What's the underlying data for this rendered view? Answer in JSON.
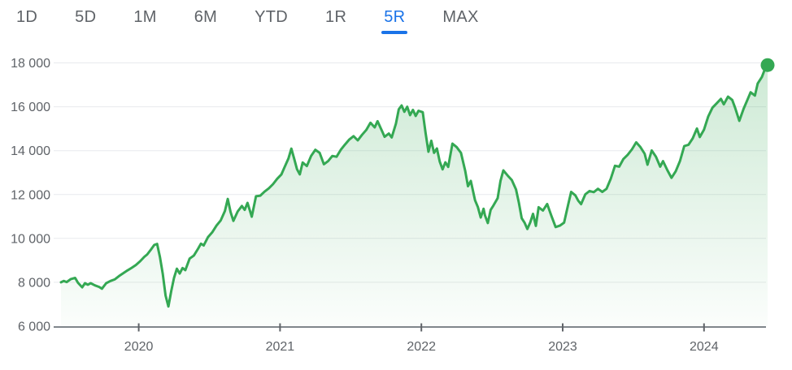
{
  "tabs": {
    "items": [
      {
        "label": "1D",
        "active": false
      },
      {
        "label": "5D",
        "active": false
      },
      {
        "label": "1M",
        "active": false
      },
      {
        "label": "6M",
        "active": false
      },
      {
        "label": "YTD",
        "active": false
      },
      {
        "label": "1R",
        "active": false
      },
      {
        "label": "5R",
        "active": true
      },
      {
        "label": "MAX",
        "active": false
      }
    ],
    "active_color": "#1a73e8",
    "inactive_color": "#5f6368"
  },
  "chart_data": {
    "type": "area",
    "title": "",
    "xlabel": "",
    "ylabel": "",
    "grid": "horizontal",
    "legend": "none",
    "xlim": [
      2019.45,
      2024.45
    ],
    "ylim": [
      6000,
      18000
    ],
    "yticks": [
      6000,
      8000,
      10000,
      12000,
      14000,
      16000,
      18000
    ],
    "ytick_labels": [
      "6 000",
      "8 000",
      "10 000",
      "12 000",
      "14 000",
      "16 000",
      "18 000"
    ],
    "xticks": [
      2020,
      2021,
      2022,
      2023,
      2024
    ],
    "xtick_labels": [
      "2020",
      "2021",
      "2022",
      "2023",
      "2024"
    ],
    "endpoint": {
      "x": 2024.45,
      "value": 17900,
      "marker": "dot"
    },
    "colors": {
      "line": "#34a853",
      "marker": "#34a853",
      "fill_top": "rgba(52,168,83,0.25)",
      "fill_bottom": "rgba(52,168,83,0.02)",
      "grid": "#e8eaed",
      "axis": "#80868b",
      "tick": "#5f6368",
      "label": "#5f6368"
    },
    "points": [
      [
        2019.45,
        8000
      ],
      [
        2019.47,
        8060
      ],
      [
        2019.49,
        8010
      ],
      [
        2019.52,
        8150
      ],
      [
        2019.55,
        8200
      ],
      [
        2019.57,
        7980
      ],
      [
        2019.6,
        7770
      ],
      [
        2019.62,
        7960
      ],
      [
        2019.64,
        7890
      ],
      [
        2019.66,
        7960
      ],
      [
        2019.69,
        7860
      ],
      [
        2019.72,
        7790
      ],
      [
        2019.74,
        7710
      ],
      [
        2019.77,
        7960
      ],
      [
        2019.8,
        8060
      ],
      [
        2019.83,
        8130
      ],
      [
        2019.86,
        8280
      ],
      [
        2019.89,
        8410
      ],
      [
        2019.92,
        8540
      ],
      [
        2019.95,
        8660
      ],
      [
        2019.98,
        8790
      ],
      [
        2020.01,
        8960
      ],
      [
        2020.04,
        9160
      ],
      [
        2020.06,
        9270
      ],
      [
        2020.09,
        9520
      ],
      [
        2020.11,
        9700
      ],
      [
        2020.13,
        9750
      ],
      [
        2020.15,
        9150
      ],
      [
        2020.17,
        8400
      ],
      [
        2020.19,
        7400
      ],
      [
        2020.21,
        6900
      ],
      [
        2020.23,
        7600
      ],
      [
        2020.25,
        8200
      ],
      [
        2020.27,
        8620
      ],
      [
        2020.29,
        8400
      ],
      [
        2020.31,
        8650
      ],
      [
        2020.33,
        8550
      ],
      [
        2020.36,
        9080
      ],
      [
        2020.39,
        9220
      ],
      [
        2020.42,
        9530
      ],
      [
        2020.44,
        9760
      ],
      [
        2020.46,
        9680
      ],
      [
        2020.49,
        10060
      ],
      [
        2020.52,
        10280
      ],
      [
        2020.55,
        10580
      ],
      [
        2020.58,
        10820
      ],
      [
        2020.61,
        11250
      ],
      [
        2020.63,
        11800
      ],
      [
        2020.65,
        11200
      ],
      [
        2020.67,
        10800
      ],
      [
        2020.7,
        11230
      ],
      [
        2020.73,
        11480
      ],
      [
        2020.75,
        11300
      ],
      [
        2020.77,
        11620
      ],
      [
        2020.8,
        10990
      ],
      [
        2020.83,
        11920
      ],
      [
        2020.86,
        11950
      ],
      [
        2020.89,
        12130
      ],
      [
        2020.92,
        12280
      ],
      [
        2020.95,
        12470
      ],
      [
        2020.98,
        12720
      ],
      [
        2021.01,
        12920
      ],
      [
        2021.03,
        13220
      ],
      [
        2021.06,
        13650
      ],
      [
        2021.08,
        14090
      ],
      [
        2021.1,
        13630
      ],
      [
        2021.12,
        13160
      ],
      [
        2021.14,
        12920
      ],
      [
        2021.16,
        13460
      ],
      [
        2021.19,
        13300
      ],
      [
        2021.22,
        13760
      ],
      [
        2021.25,
        14040
      ],
      [
        2021.28,
        13900
      ],
      [
        2021.31,
        13380
      ],
      [
        2021.34,
        13520
      ],
      [
        2021.37,
        13760
      ],
      [
        2021.4,
        13720
      ],
      [
        2021.43,
        14040
      ],
      [
        2021.46,
        14280
      ],
      [
        2021.49,
        14510
      ],
      [
        2021.52,
        14660
      ],
      [
        2021.55,
        14470
      ],
      [
        2021.58,
        14720
      ],
      [
        2021.61,
        14940
      ],
      [
        2021.64,
        15270
      ],
      [
        2021.67,
        15060
      ],
      [
        2021.69,
        15340
      ],
      [
        2021.72,
        14920
      ],
      [
        2021.74,
        14630
      ],
      [
        2021.77,
        14780
      ],
      [
        2021.79,
        14600
      ],
      [
        2021.82,
        15230
      ],
      [
        2021.84,
        15880
      ],
      [
        2021.86,
        16060
      ],
      [
        2021.88,
        15770
      ],
      [
        2021.9,
        16000
      ],
      [
        2021.92,
        15620
      ],
      [
        2021.94,
        15860
      ],
      [
        2021.96,
        15580
      ],
      [
        2021.98,
        15820
      ],
      [
        2022.01,
        15750
      ],
      [
        2022.03,
        14800
      ],
      [
        2022.05,
        13950
      ],
      [
        2022.07,
        14450
      ],
      [
        2022.09,
        13900
      ],
      [
        2022.11,
        14100
      ],
      [
        2022.13,
        13500
      ],
      [
        2022.15,
        13150
      ],
      [
        2022.17,
        13470
      ],
      [
        2022.19,
        13260
      ],
      [
        2022.22,
        14320
      ],
      [
        2022.25,
        14160
      ],
      [
        2022.28,
        13900
      ],
      [
        2022.31,
        13080
      ],
      [
        2022.33,
        12380
      ],
      [
        2022.35,
        12620
      ],
      [
        2022.38,
        11740
      ],
      [
        2022.4,
        11430
      ],
      [
        2022.42,
        10950
      ],
      [
        2022.44,
        11350
      ],
      [
        2022.45,
        11050
      ],
      [
        2022.47,
        10700
      ],
      [
        2022.49,
        11300
      ],
      [
        2022.51,
        11500
      ],
      [
        2022.54,
        11830
      ],
      [
        2022.56,
        12620
      ],
      [
        2022.58,
        13100
      ],
      [
        2022.61,
        12870
      ],
      [
        2022.64,
        12660
      ],
      [
        2022.67,
        12230
      ],
      [
        2022.69,
        11630
      ],
      [
        2022.71,
        10920
      ],
      [
        2022.73,
        10720
      ],
      [
        2022.75,
        10430
      ],
      [
        2022.77,
        10720
      ],
      [
        2022.79,
        11120
      ],
      [
        2022.81,
        10570
      ],
      [
        2022.83,
        11420
      ],
      [
        2022.86,
        11270
      ],
      [
        2022.89,
        11570
      ],
      [
        2022.92,
        11030
      ],
      [
        2022.95,
        10520
      ],
      [
        2022.98,
        10580
      ],
      [
        2023.01,
        10720
      ],
      [
        2023.04,
        11570
      ],
      [
        2023.06,
        12120
      ],
      [
        2023.09,
        11960
      ],
      [
        2023.11,
        11720
      ],
      [
        2023.13,
        11560
      ],
      [
        2023.16,
        12010
      ],
      [
        2023.19,
        12160
      ],
      [
        2023.22,
        12110
      ],
      [
        2023.25,
        12260
      ],
      [
        2023.28,
        12120
      ],
      [
        2023.31,
        12260
      ],
      [
        2023.34,
        12720
      ],
      [
        2023.37,
        13310
      ],
      [
        2023.4,
        13270
      ],
      [
        2023.43,
        13620
      ],
      [
        2023.46,
        13810
      ],
      [
        2023.49,
        14060
      ],
      [
        2023.52,
        14380
      ],
      [
        2023.55,
        14160
      ],
      [
        2023.58,
        13860
      ],
      [
        2023.6,
        13360
      ],
      [
        2023.63,
        14010
      ],
      [
        2023.66,
        13720
      ],
      [
        2023.69,
        13270
      ],
      [
        2023.71,
        13520
      ],
      [
        2023.74,
        13120
      ],
      [
        2023.77,
        12760
      ],
      [
        2023.8,
        13060
      ],
      [
        2023.83,
        13520
      ],
      [
        2023.86,
        14210
      ],
      [
        2023.89,
        14270
      ],
      [
        2023.92,
        14560
      ],
      [
        2023.95,
        15010
      ],
      [
        2023.97,
        14620
      ],
      [
        2024.0,
        14960
      ],
      [
        2024.03,
        15560
      ],
      [
        2024.06,
        15960
      ],
      [
        2024.09,
        16160
      ],
      [
        2024.12,
        16360
      ],
      [
        2024.14,
        16110
      ],
      [
        2024.17,
        16460
      ],
      [
        2024.2,
        16310
      ],
      [
        2024.22,
        15960
      ],
      [
        2024.25,
        15360
      ],
      [
        2024.28,
        15910
      ],
      [
        2024.31,
        16360
      ],
      [
        2024.33,
        16660
      ],
      [
        2024.36,
        16510
      ],
      [
        2024.38,
        17060
      ],
      [
        2024.41,
        17360
      ],
      [
        2024.43,
        17700
      ],
      [
        2024.45,
        17900
      ]
    ]
  }
}
